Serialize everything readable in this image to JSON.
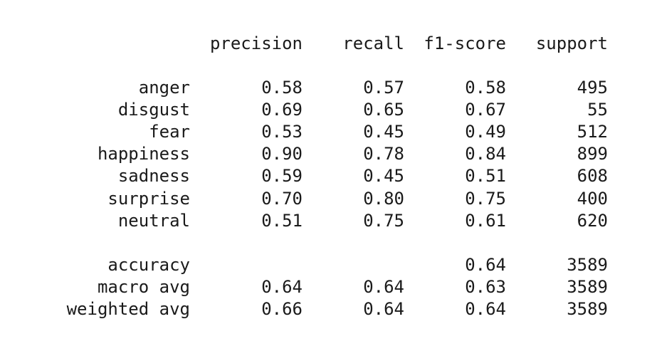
{
  "header": {
    "precision": "precision",
    "recall": "recall",
    "f1": "f1-score",
    "support": "support"
  },
  "classes": [
    {
      "label": "anger",
      "precision": "0.58",
      "recall": "0.57",
      "f1": "0.58",
      "support": "495"
    },
    {
      "label": "disgust",
      "precision": "0.69",
      "recall": "0.65",
      "f1": "0.67",
      "support": "55"
    },
    {
      "label": "fear",
      "precision": "0.53",
      "recall": "0.45",
      "f1": "0.49",
      "support": "512"
    },
    {
      "label": "happiness",
      "precision": "0.90",
      "recall": "0.78",
      "f1": "0.84",
      "support": "899"
    },
    {
      "label": "sadness",
      "precision": "0.59",
      "recall": "0.45",
      "f1": "0.51",
      "support": "608"
    },
    {
      "label": "surprise",
      "precision": "0.70",
      "recall": "0.80",
      "f1": "0.75",
      "support": "400"
    },
    {
      "label": "neutral",
      "precision": "0.51",
      "recall": "0.75",
      "f1": "0.61",
      "support": "620"
    }
  ],
  "summary": [
    {
      "label": "accuracy",
      "precision": "",
      "recall": "",
      "f1": "0.64",
      "support": "3589"
    },
    {
      "label": "macro avg",
      "precision": "0.64",
      "recall": "0.64",
      "f1": "0.63",
      "support": "3589"
    },
    {
      "label": "weighted avg",
      "precision": "0.66",
      "recall": "0.64",
      "f1": "0.64",
      "support": "3589"
    }
  ]
}
